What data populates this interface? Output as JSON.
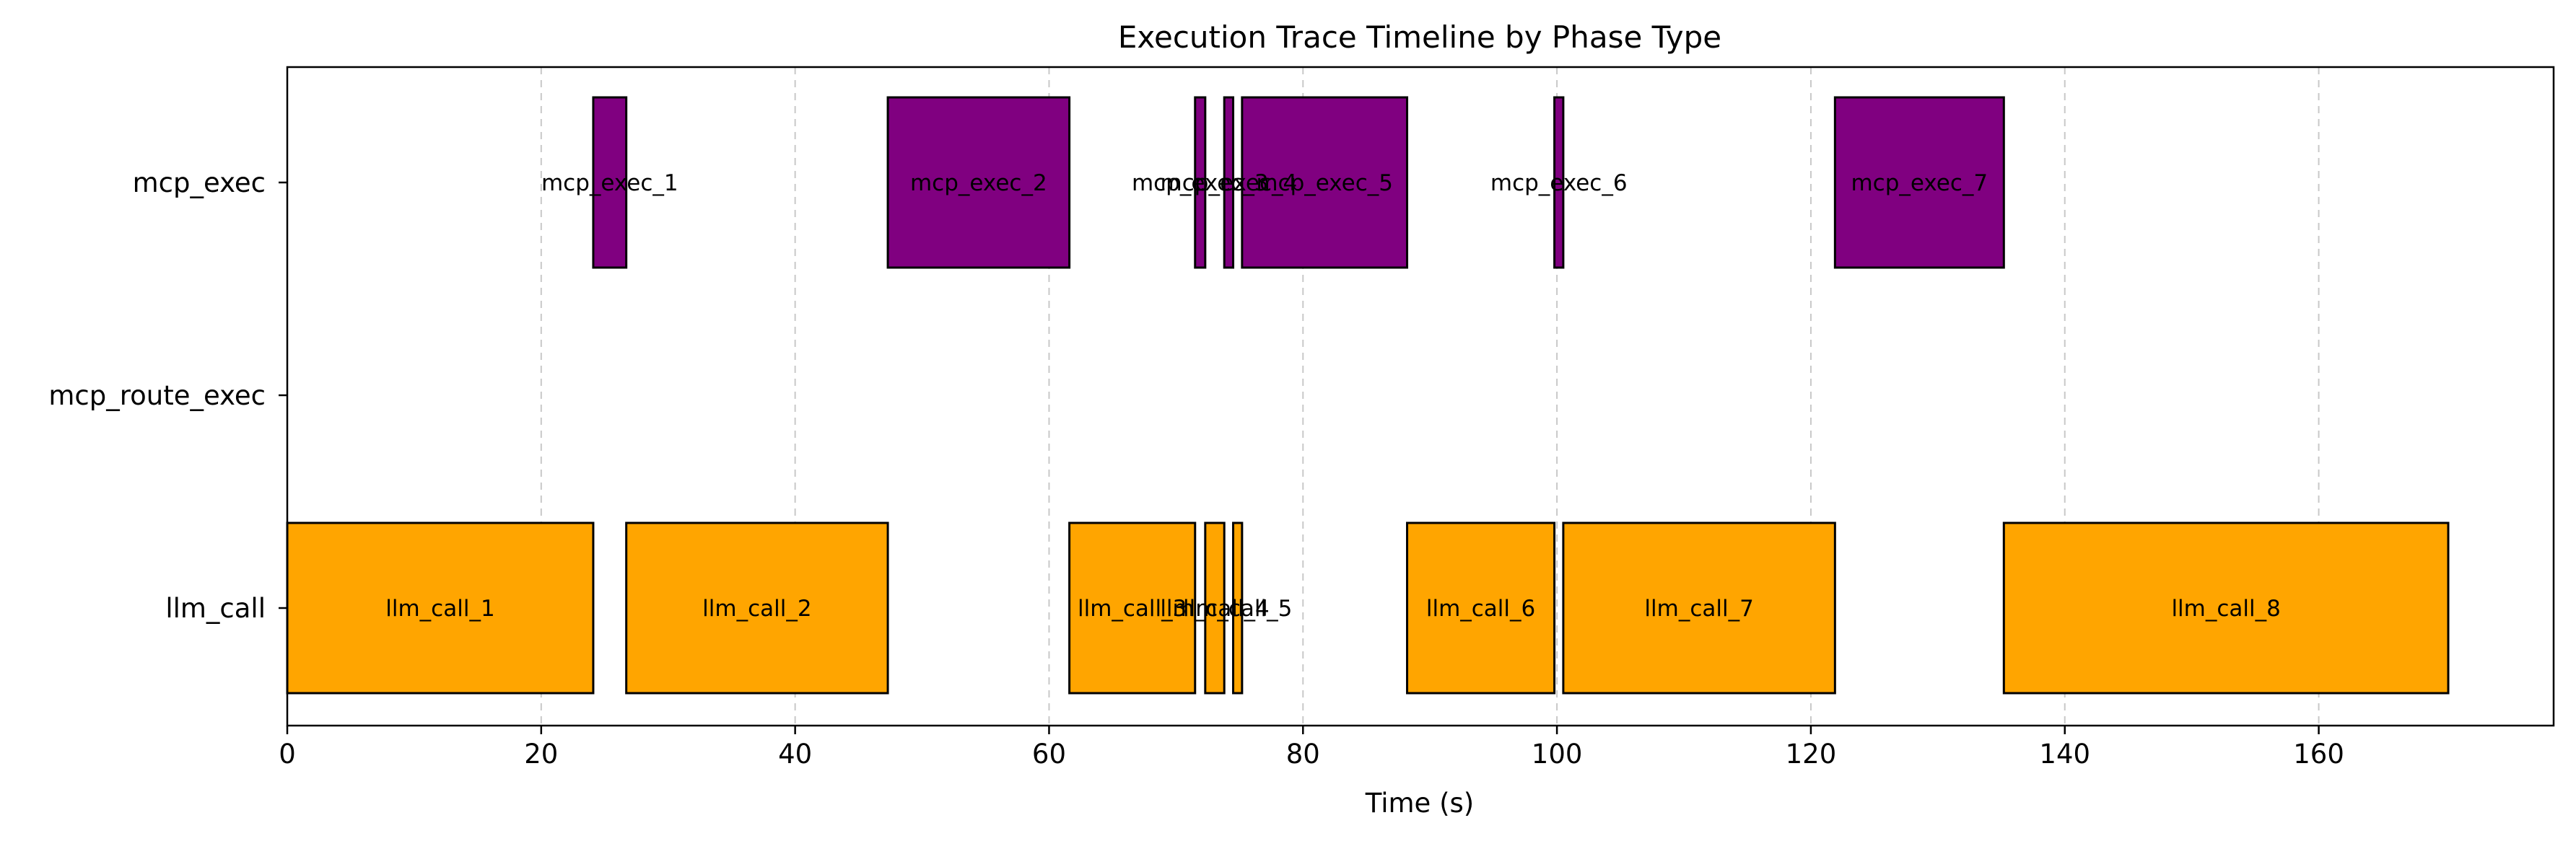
{
  "chart_data": {
    "type": "bar",
    "orientation": "horizontal-timeline",
    "title": "Execution Trace Timeline by Phase Type",
    "xlabel": "Time (s)",
    "ylabel": "",
    "xlim": [
      0,
      178.5
    ],
    "xticks": [
      0,
      20,
      40,
      60,
      80,
      100,
      120,
      140,
      160
    ],
    "categories": [
      "mcp_exec",
      "mcp_route_exec",
      "llm_call"
    ],
    "grid": "vertical dashed",
    "colors": {
      "llm_call": "#FFA500",
      "mcp_exec": "#800080"
    },
    "series": [
      {
        "category": "mcp_exec",
        "segments": [
          {
            "label": "mcp_exec_1",
            "start": 24.1,
            "end": 26.7
          },
          {
            "label": "mcp_exec_2",
            "start": 47.3,
            "end": 61.6
          },
          {
            "label": "mcp_exec_3",
            "start": 71.5,
            "end": 72.3
          },
          {
            "label": "mcp_exec_4",
            "start": 73.8,
            "end": 74.5
          },
          {
            "label": "mcp_exec_5",
            "start": 75.2,
            "end": 88.2
          },
          {
            "label": "mcp_exec_6",
            "start": 99.8,
            "end": 100.5
          },
          {
            "label": "mcp_exec_7",
            "start": 121.9,
            "end": 135.2
          }
        ]
      },
      {
        "category": "mcp_route_exec",
        "segments": []
      },
      {
        "category": "llm_call",
        "segments": [
          {
            "label": "llm_call_1",
            "start": 0,
            "end": 24.1
          },
          {
            "label": "llm_call_2",
            "start": 26.7,
            "end": 47.3
          },
          {
            "label": "llm_call_3",
            "start": 61.6,
            "end": 71.5
          },
          {
            "label": "llm_call_4",
            "start": 72.3,
            "end": 73.8
          },
          {
            "label": "llm_call_5",
            "start": 74.5,
            "end": 75.2
          },
          {
            "label": "llm_call_6",
            "start": 88.2,
            "end": 99.8
          },
          {
            "label": "llm_call_7",
            "start": 100.5,
            "end": 121.9
          },
          {
            "label": "llm_call_8",
            "start": 135.2,
            "end": 170.2
          }
        ]
      }
    ]
  }
}
